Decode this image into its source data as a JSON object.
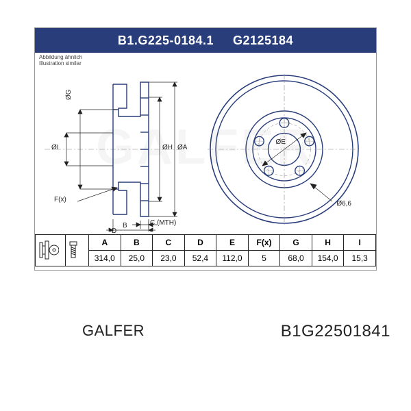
{
  "header": {
    "code1": "B1.G225-0184.1",
    "code2": "G2125184",
    "bar_color": "#283d7a",
    "text_color": "#ffffff"
  },
  "subtitle": {
    "line1": "Abbildung ähnlich",
    "line2": "Illustration similar"
  },
  "watermark": "GALFER",
  "brand": "GALFER",
  "part_number": "B1G22501841",
  "diagram": {
    "side_view": {
      "stroke": "#283d7a",
      "stroke_width": 1.4,
      "labels": {
        "phiI": "ØI",
        "phiG": "ØG",
        "phiH": "ØH",
        "phiA": "ØA",
        "Fx": "F(x)",
        "B": "B",
        "C": "C (MTH)",
        "D": "D"
      }
    },
    "front_view": {
      "stroke": "#283d7a",
      "stroke_width": 1.4,
      "labels": {
        "phiE": "ØE",
        "d66": "Ø6,6"
      },
      "hole_count": 5,
      "outer_d": 314.0,
      "pcd": 112.0,
      "center_bore": 68.0
    }
  },
  "table": {
    "headers": [
      "A",
      "B",
      "C",
      "D",
      "E",
      "F(x)",
      "G",
      "H",
      "I"
    ],
    "values": [
      "314,0",
      "25,0",
      "23,0",
      "52,4",
      "112,0",
      "5",
      "68,0",
      "154,0",
      "15,3"
    ],
    "border_color": "#222222",
    "font_size": 12
  }
}
